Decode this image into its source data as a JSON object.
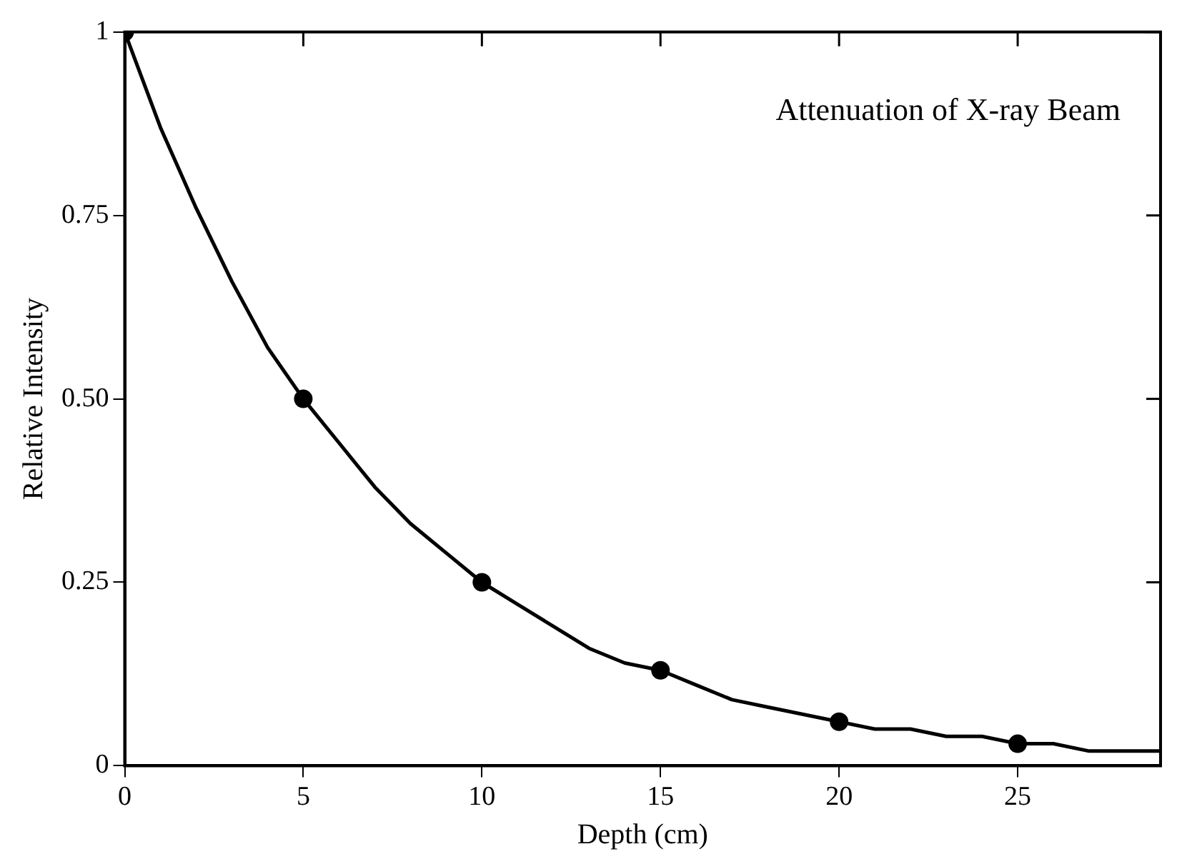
{
  "chart_data": {
    "type": "line",
    "title": "Attenuation of X-ray Beam",
    "xlabel": "Depth (cm)",
    "ylabel": "Relative Intensity",
    "series": [
      {
        "type": "line",
        "color": "#000000",
        "marker": "none",
        "x": [
          0,
          1,
          2,
          3,
          4,
          5,
          6,
          7,
          8,
          9,
          10,
          11,
          12,
          13,
          14,
          15,
          16,
          17,
          18,
          19,
          20,
          21,
          22,
          23,
          24,
          25,
          26,
          27,
          28,
          29
        ],
        "values": [
          1,
          0.87,
          0.76,
          0.66,
          0.57,
          0.5,
          0.44,
          0.38,
          0.33,
          0.29,
          0.25,
          0.22,
          0.19,
          0.16,
          0.14,
          0.13,
          0.11,
          0.09,
          0.08,
          0.07,
          0.06,
          0.05,
          0.05,
          0.04,
          0.04,
          0.03,
          0.03,
          0.02,
          0.02,
          0.02
        ]
      },
      {
        "type": "scatter",
        "color": "#000000",
        "marker": "circle",
        "x": [
          0,
          5,
          10,
          15,
          20,
          25
        ],
        "values": [
          1,
          0.5,
          0.25,
          0.13,
          0.06,
          0.03
        ]
      }
    ],
    "xlim": [
      0,
      29
    ],
    "xticks": [
      0,
      5,
      10,
      15,
      20,
      25
    ],
    "ylim": [
      0,
      1
    ],
    "yticks": [
      0,
      0.25,
      {
        "value": 0.5,
        "label": "0.50"
      },
      0.75,
      1
    ],
    "grid": false,
    "legend": false
  }
}
